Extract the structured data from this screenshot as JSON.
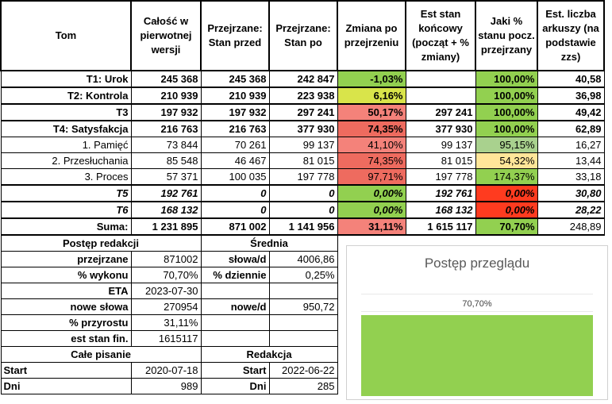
{
  "colors": {
    "green_bright": "#92d050",
    "green_mid": "#a9d18e",
    "green_light": "#c6e0b4",
    "yellow_green": "#d9e44a",
    "yellow": "#ffe699",
    "red_light": "#f4827a",
    "red_mid": "#ee6b5f",
    "red_strong": "#ff3b1f",
    "bar_green": "#92d050"
  },
  "header": {
    "tom": "Tom",
    "calosc": "Całość w pierwotnej wersji",
    "stan_przed": "Przejrzane: Stan przed",
    "stan_po": "Przejrzane: Stan po",
    "zmiana": "Zmiana po przejrzeniu",
    "est_stan": "Est stan końcowy (począt + % zmiany)",
    "jaki_proc": "Jaki % stanu pocz. przejrzany",
    "arkusze": "Est. liczba arkuszy (na podstawie zzs)"
  },
  "rows": [
    {
      "name": "T1: Urok",
      "calosc": "245 368",
      "przed": "245 368",
      "po": "242 847",
      "zmiana": "-1,03%",
      "est": "",
      "proc": "100,00%",
      "ark": "40,58"
    },
    {
      "name": "T2: Kontrola",
      "calosc": "210 939",
      "przed": "210 939",
      "po": "223 938",
      "zmiana": "6,16%",
      "est": "",
      "proc": "100,00%",
      "ark": "36,98"
    },
    {
      "name": "T3",
      "calosc": "197 932",
      "przed": "197 932",
      "po": "297 241",
      "zmiana": "50,17%",
      "est": "297 241",
      "proc": "100,00%",
      "ark": "49,42"
    },
    {
      "name": "T4: Satysfakcja",
      "calosc": "216 763",
      "przed": "216 763",
      "po": "377 930",
      "zmiana": "74,35%",
      "est": "377 930",
      "proc": "100,00%",
      "ark": "62,89"
    },
    {
      "name": "1. Pamięć",
      "calosc": "73 844",
      "przed": "70 261",
      "po": "99 137",
      "zmiana": "41,10%",
      "est": "99 137",
      "proc": "95,15%",
      "ark": "16,27"
    },
    {
      "name": "2. Przesłuchania",
      "calosc": "85 548",
      "przed": "46 467",
      "po": "81 015",
      "zmiana": "74,35%",
      "est": "81 015",
      "proc": "54,32%",
      "ark": "13,44"
    },
    {
      "name": "3. Proces",
      "calosc": "57 371",
      "przed": "100 035",
      "po": "197 778",
      "zmiana": "97,71%",
      "est": "197 778",
      "proc": "174,37%",
      "ark": "33,18"
    },
    {
      "name": "T5",
      "calosc": "192 761",
      "przed": "0",
      "po": "0",
      "zmiana": "0,00%",
      "est": "192 761",
      "proc": "0,00%",
      "ark": "30,80"
    },
    {
      "name": "T6",
      "calosc": "168 132",
      "przed": "0",
      "po": "0",
      "zmiana": "0,00%",
      "est": "168 132",
      "proc": "0,00%",
      "ark": "28,22"
    },
    {
      "name": "Suma:",
      "calosc": "1 231 895",
      "przed": "871 002",
      "po": "1 141 956",
      "zmiana": "31,11%",
      "est": "1 615 117",
      "proc": "70,70%",
      "ark": "248,89"
    }
  ],
  "postep": {
    "title": "Postęp redakcji",
    "przejrzane_label": "przejrzane",
    "przejrzane": "871002",
    "wykonu_label": "% wykonu",
    "wykonu": "70,70%",
    "eta_label": "ETA",
    "eta": "2023-07-30",
    "nowe_label": "nowe słowa",
    "nowe": "270954",
    "przyrost_label": "% przyrostu",
    "przyrost": "31,11%",
    "est_label": "est stan fin.",
    "est": "1615117"
  },
  "srednia": {
    "title": "Średnia",
    "slowa_label": "słowa/d",
    "slowa": "4006,86",
    "dzienne_label": "% dziennie",
    "dzienne": "0,25%",
    "nowe_label": "nowe/d",
    "nowe": "950,72"
  },
  "pisanie": {
    "title": "Całe pisanie",
    "start_label": "Start",
    "start": "2020-07-18",
    "dni_label": "Dni",
    "dni": "989"
  },
  "redakcja": {
    "title": "Redakcja",
    "start_label": "Start",
    "start": "2022-06-22",
    "dni_label": "Dni",
    "dni": "285"
  },
  "chart_data": {
    "type": "bar",
    "title": "Postęp przeglądu",
    "categories": [
      ""
    ],
    "values": [
      70.7
    ],
    "data_labels": [
      "70,70%"
    ],
    "orientation": "horizontal",
    "xlim": [
      0,
      70.7
    ],
    "color": "#92d050"
  }
}
